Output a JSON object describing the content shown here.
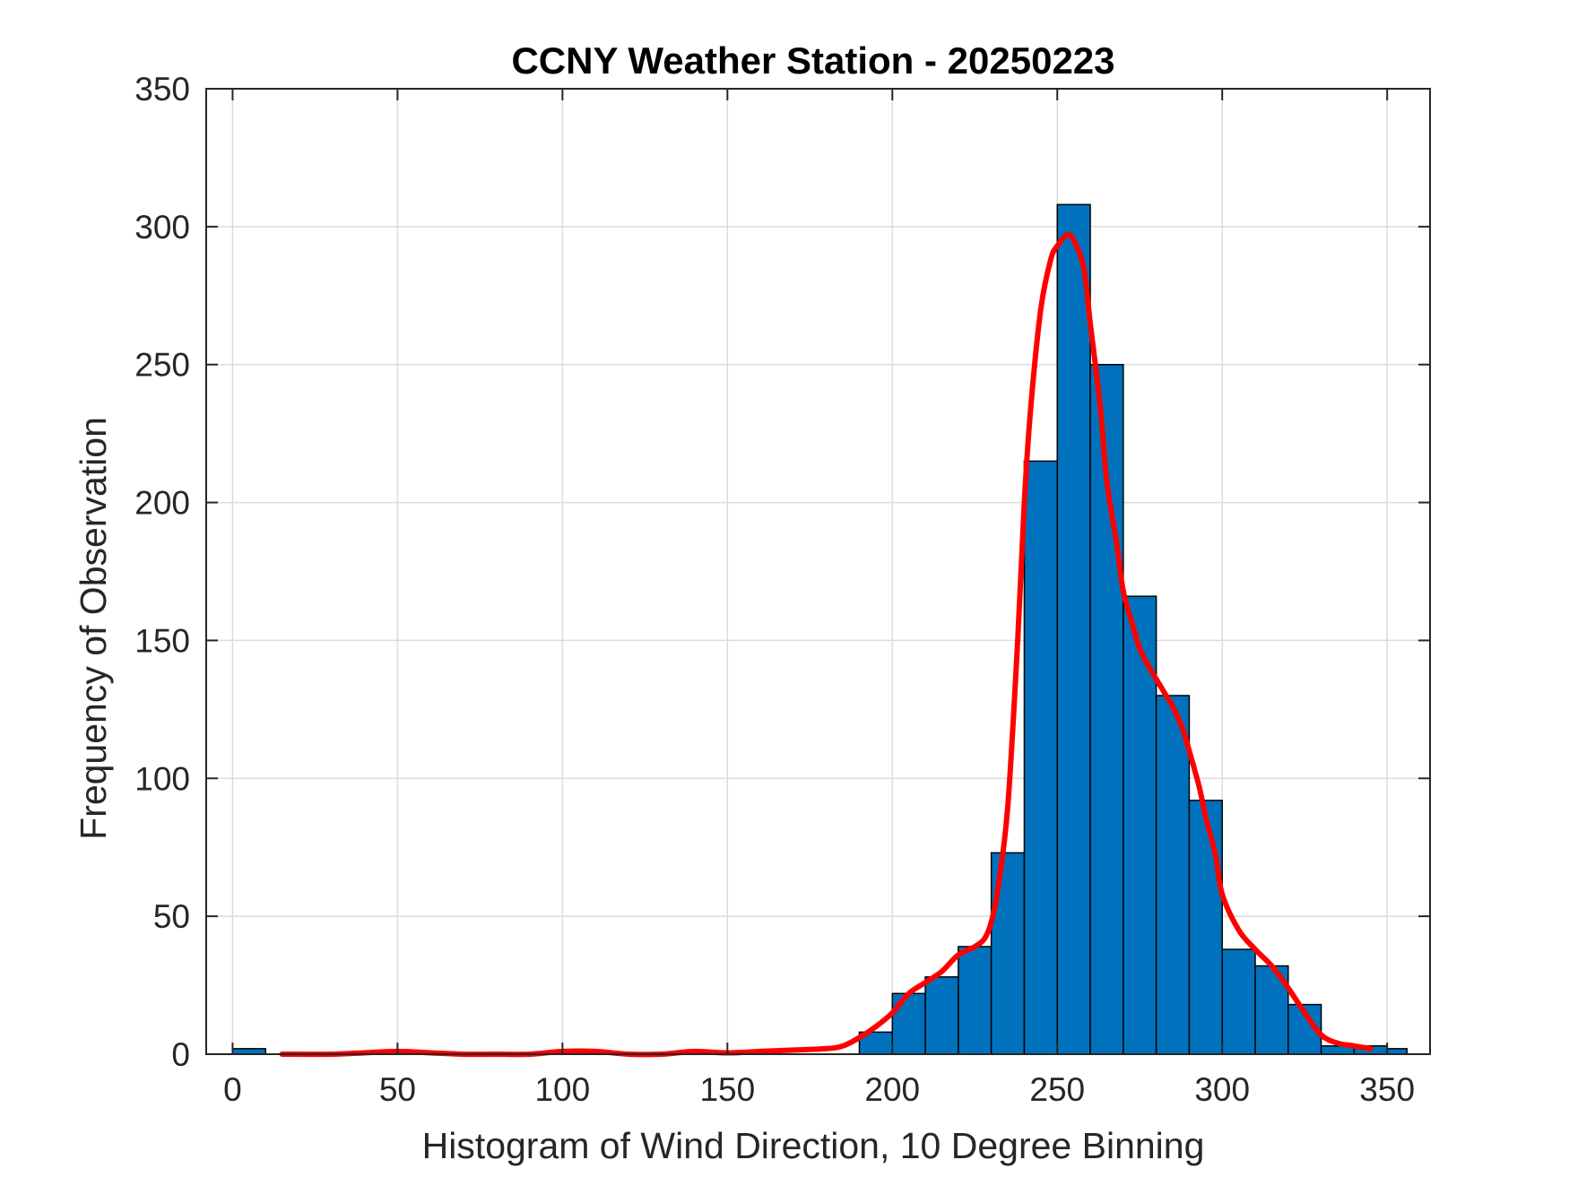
{
  "chart_data": {
    "type": "bar",
    "title": "CCNY Weather Station - 20250223",
    "xlabel": "Histogram of Wind Direction, 10 Degree Binning",
    "ylabel": "Frequency of Observation",
    "xlim": [
      -8,
      363
    ],
    "ylim": [
      0,
      350
    ],
    "xticks": [
      0,
      50,
      100,
      150,
      200,
      250,
      300,
      350
    ],
    "yticks": [
      0,
      50,
      100,
      150,
      200,
      250,
      300,
      350
    ],
    "grid": true,
    "bin_width": 10,
    "bars": {
      "bin_starts": [
        0,
        10,
        20,
        30,
        40,
        50,
        60,
        70,
        80,
        90,
        100,
        110,
        120,
        130,
        140,
        150,
        160,
        170,
        180,
        190,
        200,
        210,
        220,
        230,
        240,
        250,
        260,
        270,
        280,
        290,
        300,
        310,
        320,
        330,
        340
      ],
      "values": [
        2,
        0,
        0,
        0,
        0,
        0,
        0,
        0,
        0,
        0,
        0,
        0,
        0,
        0,
        0,
        0,
        0,
        0,
        0,
        8,
        22,
        28,
        39,
        73,
        215,
        308,
        250,
        166,
        130,
        92,
        38,
        32,
        18,
        3,
        3
      ],
      "extra_bins": [
        {
          "start": 350,
          "width": 6,
          "value": 2
        }
      ],
      "color": "#0072BD",
      "edge_color": "#000000"
    },
    "series": [
      {
        "type": "line",
        "color": "#FF0000",
        "x": [
          15,
          30,
          40,
          50,
          60,
          70,
          80,
          90,
          100,
          110,
          120,
          130,
          140,
          150,
          160,
          170,
          180,
          185,
          190,
          195,
          200,
          205,
          210,
          215,
          220,
          225,
          228,
          230,
          232,
          235,
          238,
          240,
          242,
          245,
          248,
          250,
          253,
          255,
          258,
          260,
          263,
          265,
          268,
          270,
          273,
          275,
          278,
          280,
          283,
          285,
          288,
          290,
          293,
          295,
          298,
          300,
          305,
          310,
          315,
          320,
          325,
          330,
          335,
          340,
          345
        ],
        "y": [
          0,
          0,
          0.5,
          1,
          0.5,
          0,
          0,
          0,
          1,
          1,
          0,
          0,
          1,
          0.5,
          1,
          1.5,
          2,
          3,
          6,
          10,
          15,
          22,
          26,
          30,
          36,
          39,
          42,
          48,
          60,
          90,
          150,
          200,
          235,
          270,
          288,
          293,
          297,
          295,
          285,
          265,
          235,
          208,
          185,
          168,
          155,
          147,
          140,
          136,
          130,
          126,
          118,
          110,
          97,
          86,
          72,
          58,
          45,
          38,
          32,
          24,
          15,
          7,
          4,
          3,
          2
        ]
      }
    ]
  }
}
